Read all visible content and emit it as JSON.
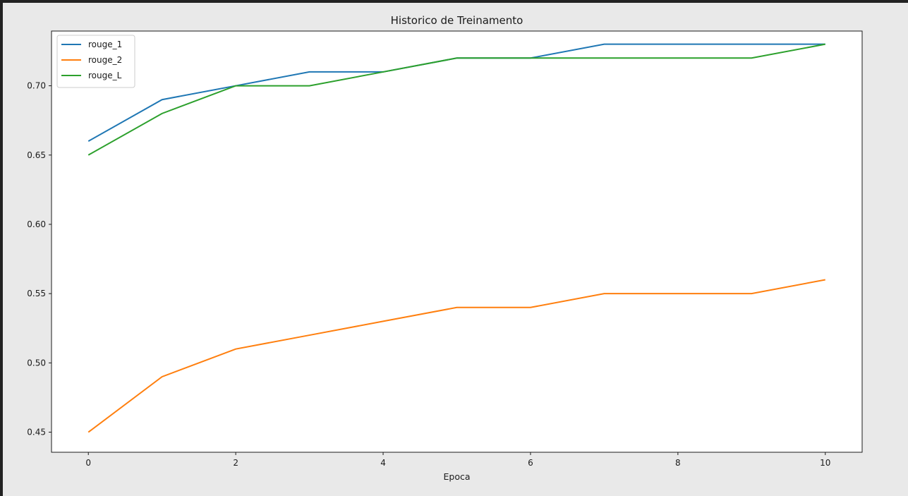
{
  "chart_data": {
    "type": "line",
    "title": "Historico de Treinamento",
    "xlabel": "Epoca",
    "ylabel": "",
    "x": [
      0,
      1,
      2,
      3,
      4,
      5,
      6,
      7,
      8,
      9,
      10
    ],
    "series": [
      {
        "name": "rouge_1",
        "color": "#1f77b4",
        "values": [
          0.66,
          0.69,
          0.7,
          0.71,
          0.71,
          0.72,
          0.72,
          0.73,
          0.73,
          0.73,
          0.73
        ]
      },
      {
        "name": "rouge_2",
        "color": "#ff7f0e",
        "values": [
          0.45,
          0.49,
          0.51,
          0.52,
          0.53,
          0.54,
          0.54,
          0.55,
          0.55,
          0.55,
          0.56
        ]
      },
      {
        "name": "rouge_L",
        "color": "#2ca02c",
        "values": [
          0.65,
          0.68,
          0.7,
          0.7,
          0.71,
          0.72,
          0.72,
          0.72,
          0.72,
          0.72,
          0.73
        ]
      }
    ],
    "xlim": [
      -0.5,
      10.5
    ],
    "ylim": [
      0.4355,
      0.7395
    ],
    "xticks": [
      0,
      2,
      4,
      6,
      8,
      10
    ],
    "xtick_labels": [
      "0",
      "2",
      "4",
      "6",
      "8",
      "10"
    ],
    "yticks": [
      0.45,
      0.5,
      0.55,
      0.6,
      0.65,
      0.7
    ],
    "ytick_labels": [
      "0.45",
      "0.50",
      "0.55",
      "0.60",
      "0.65",
      "0.70"
    ],
    "grid": false,
    "legend_position": "top-left"
  }
}
